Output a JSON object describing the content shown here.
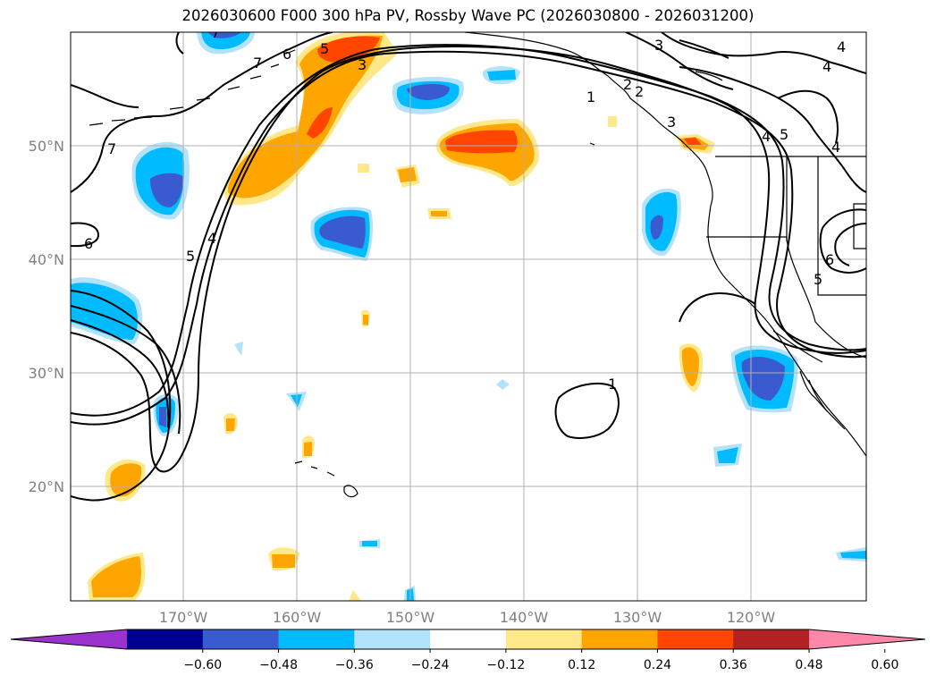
{
  "title": "2026030600 F000 300 hPa PV, Rossby Wave PC (2026030800 - 2026031200)",
  "longitude_labels": [
    "170°W",
    "160°W",
    "150°W",
    "140°W",
    "130°W",
    "120°W"
  ],
  "latitude_labels": [
    "50°N",
    "40°N",
    "30°N",
    "20°N"
  ],
  "pv_contour_labels": [
    "7",
    "6",
    "5",
    "4",
    "3",
    "2",
    "1",
    "1",
    "2",
    "3",
    "4",
    "5",
    "3",
    "4",
    "7",
    "6",
    "5",
    "4",
    "6",
    "5",
    "7",
    "4"
  ],
  "colorbar": {
    "ticks": [
      "−0.60",
      "−0.48",
      "−0.36",
      "−0.24",
      "−0.12",
      "0.12",
      "0.24",
      "0.36",
      "0.48",
      "0.60"
    ],
    "colors": [
      "#9933cc",
      "#000090",
      "#3a5bd0",
      "#00bbff",
      "#b3e3fb",
      "#ffffff",
      "#ffe88a",
      "#ffa500",
      "#ff4500",
      "#b22222",
      "#ff88aa"
    ]
  },
  "colors": {
    "grid": "#b0b0b0",
    "contour": "#000000",
    "land_outline": "#000000"
  }
}
